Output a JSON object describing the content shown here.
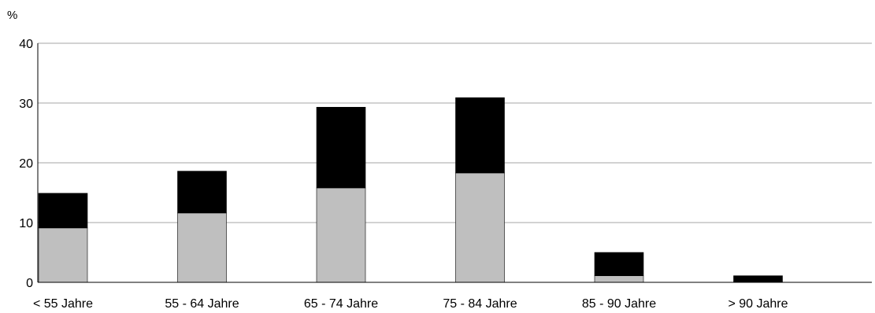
{
  "chart_data": {
    "type": "bar",
    "stacked": true,
    "unit_label": "%",
    "categories": [
      "< 55 Jahre",
      "55 - 64 Jahre",
      "65 - 74 Jahre",
      "75 - 84 Jahre",
      "85 - 90 Jahre",
      "> 90 Jahre"
    ],
    "series": [
      {
        "values": [
          9.1,
          11.6,
          15.8,
          18.3,
          1.1,
          0.0
        ],
        "color": "#bfbfbf"
      },
      {
        "values": [
          5.8,
          7.0,
          13.5,
          12.6,
          3.9,
          1.1
        ],
        "color": "#000000"
      }
    ],
    "yticks": [
      0,
      10,
      20,
      30,
      40
    ],
    "ylim": [
      0,
      40
    ],
    "grid": true,
    "gridline_color": "#a6a6a6",
    "legend": "none"
  }
}
